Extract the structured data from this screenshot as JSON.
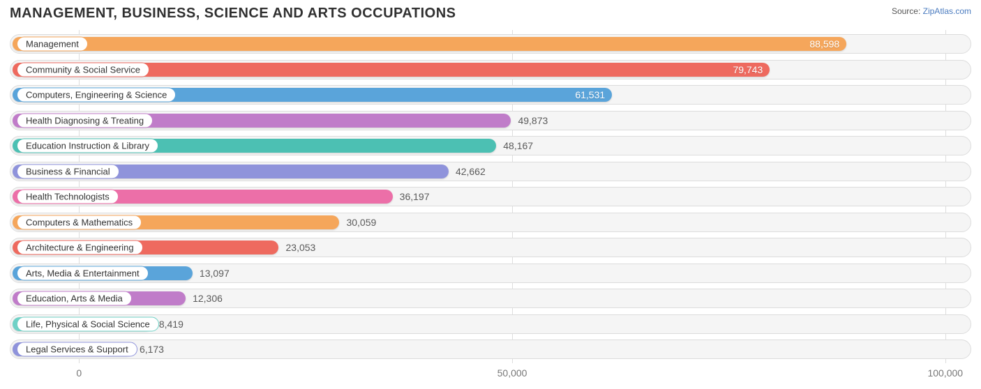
{
  "header": {
    "title": "MANAGEMENT, BUSINESS, SCIENCE AND ARTS OCCUPATIONS",
    "source_label": "Source:",
    "source_name": "ZipAtlas.com"
  },
  "chart": {
    "type": "bar-horizontal",
    "xlim_min": -8000,
    "xlim_max": 103000,
    "track_bg": "#f5f5f5",
    "track_border": "#dcdcdc",
    "grid_color": "#dddddd",
    "value_label_fontsize": 14,
    "category_label_fontsize": 13,
    "ticks": [
      {
        "value": 0,
        "label": "0"
      },
      {
        "value": 50000,
        "label": "50,000"
      },
      {
        "value": 100000,
        "label": "100,000"
      }
    ],
    "rows": [
      {
        "category": "Management",
        "value": 88598,
        "label": "88,598",
        "color": "#f5a65b",
        "label_inside": true
      },
      {
        "category": "Community & Social Service",
        "value": 79743,
        "label": "79,743",
        "color": "#ee6a5f",
        "label_inside": true
      },
      {
        "category": "Computers, Engineering & Science",
        "value": 61531,
        "label": "61,531",
        "color": "#5aa4da",
        "label_inside": true
      },
      {
        "category": "Health Diagnosing & Treating",
        "value": 49873,
        "label": "49,873",
        "color": "#c07cc9",
        "label_inside": false
      },
      {
        "category": "Education Instruction & Library",
        "value": 48167,
        "label": "48,167",
        "color": "#4cc0b3",
        "label_inside": false
      },
      {
        "category": "Business & Financial",
        "value": 42662,
        "label": "42,662",
        "color": "#8f93db",
        "label_inside": false
      },
      {
        "category": "Health Technologists",
        "value": 36197,
        "label": "36,197",
        "color": "#ec6fa8",
        "label_inside": false
      },
      {
        "category": "Computers & Mathematics",
        "value": 30059,
        "label": "30,059",
        "color": "#f5a65b",
        "label_inside": false
      },
      {
        "category": "Architecture & Engineering",
        "value": 23053,
        "label": "23,053",
        "color": "#ee6a5f",
        "label_inside": false
      },
      {
        "category": "Arts, Media & Entertainment",
        "value": 13097,
        "label": "13,097",
        "color": "#5aa4da",
        "label_inside": false
      },
      {
        "category": "Education, Arts & Media",
        "value": 12306,
        "label": "12,306",
        "color": "#c07cc9",
        "label_inside": false
      },
      {
        "category": "Life, Physical & Social Science",
        "value": 8419,
        "label": "8,419",
        "color": "#6fd1c6",
        "label_inside": false
      },
      {
        "category": "Legal Services & Support",
        "value": 6173,
        "label": "6,173",
        "color": "#8f93db",
        "label_inside": false
      }
    ]
  }
}
